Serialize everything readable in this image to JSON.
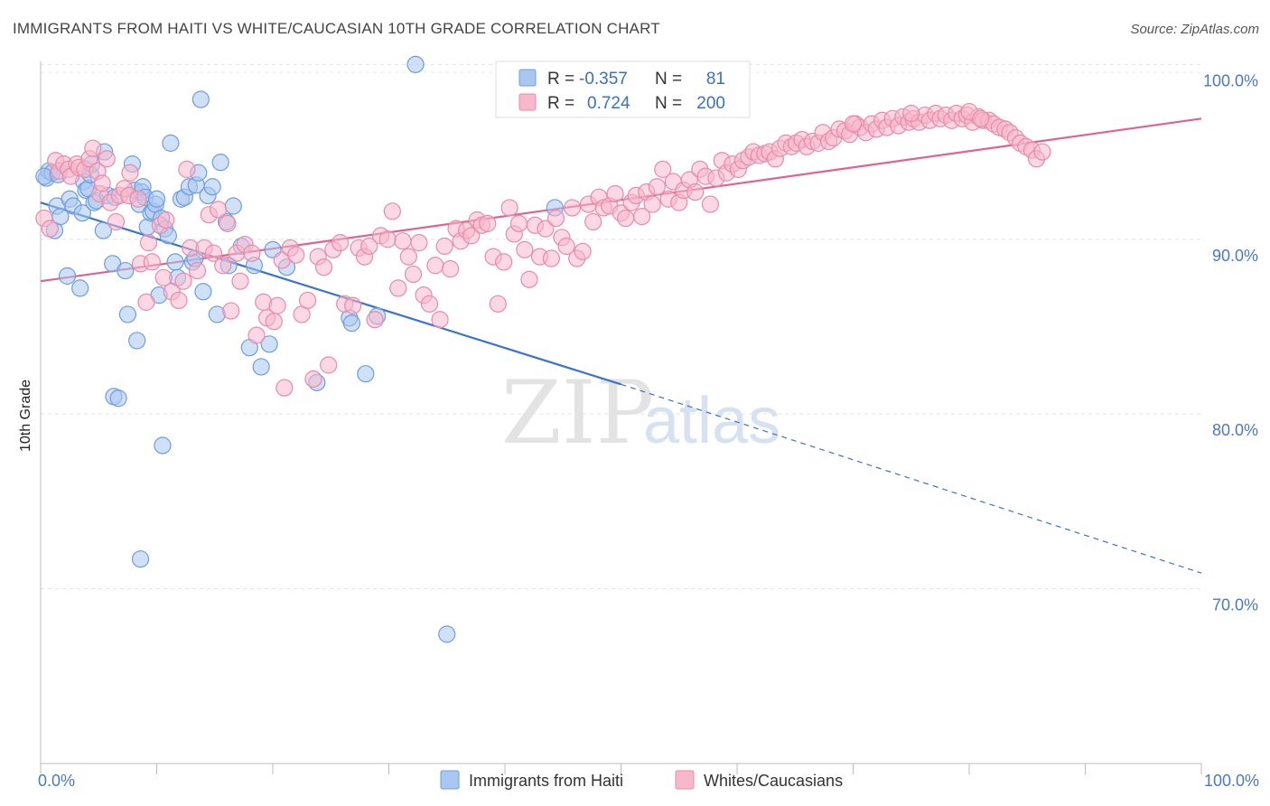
{
  "title": "IMMIGRANTS FROM HAITI VS WHITE/CAUCASIAN 10TH GRADE CORRELATION CHART",
  "source": "Source: ZipAtlas.com",
  "watermark": {
    "zip": "ZIP",
    "atlas": "atlas"
  },
  "legend": {
    "rows": [
      {
        "r_label": "R =",
        "r_value": "-0.357",
        "n_label": "N =",
        "n_value": "81",
        "color": "#a9c7f0",
        "stroke": "#6d9de0"
      },
      {
        "r_label": "R =",
        "r_value": "0.724",
        "n_label": "N =",
        "n_value": "200",
        "color": "#f7b8cc",
        "stroke": "#e88aa8"
      }
    ]
  },
  "bottom_legend": [
    {
      "label": "Immigrants from Haiti",
      "color": "#a9c7f0",
      "stroke": "#6d9de0"
    },
    {
      "label": "Whites/Caucasians",
      "color": "#f7b8cc",
      "stroke": "#e88aa8"
    }
  ],
  "chart_data": {
    "type": "scatter",
    "title": "IMMIGRANTS FROM HAITI VS WHITE/CAUCASIAN 10TH GRADE CORRELATION CHART",
    "xlabel": "",
    "ylabel": "10th Grade",
    "xlim": [
      0,
      100
    ],
    "ylim": [
      60,
      101
    ],
    "x_tick_labels": [
      "0.0%",
      "100.0%"
    ],
    "y_ticks": [
      70,
      80,
      90,
      100
    ],
    "y_tick_labels": [
      "70.0%",
      "80.0%",
      "90.0%",
      "100.0%"
    ],
    "grid": true,
    "legend_position": "top-center",
    "series": [
      {
        "name": "Immigrants from Haiti",
        "color": "#a9c7f0",
        "stroke": "#6d9de0",
        "trend": {
          "x0": 0,
          "y0": 92.1,
          "x1": 50,
          "y1": 81.7,
          "dash_to_x": 100,
          "dash_to_y": 70.9,
          "color": "#3a72cf"
        },
        "points": [
          [
            0.5,
            93.5
          ],
          [
            0.7,
            93.9
          ],
          [
            1.0,
            93.8
          ],
          [
            1.2,
            90.5
          ],
          [
            1.4,
            91.9
          ],
          [
            1.7,
            91.3
          ],
          [
            2.3,
            87.9
          ],
          [
            2.5,
            92.3
          ],
          [
            2.8,
            91.9
          ],
          [
            3.4,
            87.2
          ],
          [
            3.6,
            91.5
          ],
          [
            3.7,
            93.3
          ],
          [
            3.9,
            92.8
          ],
          [
            4.1,
            92.9
          ],
          [
            4.3,
            93.7
          ],
          [
            4.4,
            94.3
          ],
          [
            4.6,
            92.1
          ],
          [
            4.8,
            92.2
          ],
          [
            5.4,
            90.5
          ],
          [
            5.5,
            95.0
          ],
          [
            5.8,
            92.5
          ],
          [
            6.2,
            88.6
          ],
          [
            6.4,
            92.4
          ],
          [
            6.3,
            81.0
          ],
          [
            6.7,
            80.9
          ],
          [
            7.3,
            88.2
          ],
          [
            7.5,
            85.7
          ],
          [
            7.9,
            94.3
          ],
          [
            8.1,
            92.8
          ],
          [
            8.3,
            84.2
          ],
          [
            8.5,
            92.0
          ],
          [
            8.7,
            92.7
          ],
          [
            8.8,
            93.0
          ],
          [
            8.6,
            71.7
          ],
          [
            9.0,
            92.4
          ],
          [
            9.2,
            90.7
          ],
          [
            9.5,
            91.5
          ],
          [
            9.7,
            91.6
          ],
          [
            9.9,
            92.0
          ],
          [
            10.0,
            92.3
          ],
          [
            10.2,
            86.8
          ],
          [
            10.4,
            91.2
          ],
          [
            10.7,
            90.6
          ],
          [
            10.5,
            78.2
          ],
          [
            11.0,
            90.2
          ],
          [
            11.2,
            95.5
          ],
          [
            11.6,
            88.7
          ],
          [
            11.8,
            87.8
          ],
          [
            12.1,
            92.3
          ],
          [
            12.4,
            92.4
          ],
          [
            12.8,
            93.0
          ],
          [
            13.1,
            88.7
          ],
          [
            13.4,
            93.1
          ],
          [
            13.3,
            88.9
          ],
          [
            13.6,
            93.8
          ],
          [
            13.8,
            98.0
          ],
          [
            14.0,
            87.0
          ],
          [
            14.4,
            92.5
          ],
          [
            14.8,
            93.0
          ],
          [
            15.2,
            85.7
          ],
          [
            15.5,
            94.4
          ],
          [
            16.0,
            91.0
          ],
          [
            16.2,
            88.5
          ],
          [
            16.6,
            91.9
          ],
          [
            17.3,
            89.6
          ],
          [
            18.0,
            83.8
          ],
          [
            18.4,
            88.5
          ],
          [
            19.0,
            82.7
          ],
          [
            19.7,
            84.0
          ],
          [
            20.0,
            89.4
          ],
          [
            21.2,
            88.4
          ],
          [
            23.8,
            81.8
          ],
          [
            26.6,
            85.5
          ],
          [
            26.8,
            85.2
          ],
          [
            28.0,
            82.3
          ],
          [
            29.0,
            85.6
          ],
          [
            32.3,
            100.0
          ],
          [
            35.0,
            67.4
          ],
          [
            44.3,
            91.8
          ],
          [
            0.3,
            93.6
          ],
          [
            1.5,
            93.7
          ]
        ]
      },
      {
        "name": "Whites/Caucasians",
        "color": "#f7b8cc",
        "stroke": "#e88aa8",
        "trend": {
          "x0": 0,
          "y0": 87.6,
          "x1": 100,
          "y1": 96.9,
          "color": "#e0628d"
        },
        "points": [
          [
            0.3,
            91.2
          ],
          [
            0.8,
            90.6
          ],
          [
            1.3,
            94.5
          ],
          [
            1.6,
            93.9
          ],
          [
            2.0,
            94.3
          ],
          [
            2.4,
            94.0
          ],
          [
            2.6,
            93.6
          ],
          [
            3.1,
            94.3
          ],
          [
            3.3,
            94.1
          ],
          [
            3.8,
            94.0
          ],
          [
            4.2,
            94.6
          ],
          [
            4.5,
            95.2
          ],
          [
            4.9,
            93.9
          ],
          [
            5.1,
            92.6
          ],
          [
            5.3,
            93.2
          ],
          [
            5.7,
            94.6
          ],
          [
            6.0,
            92.1
          ],
          [
            6.5,
            91.0
          ],
          [
            6.8,
            92.5
          ],
          [
            7.2,
            92.9
          ],
          [
            7.6,
            92.5
          ],
          [
            7.7,
            93.8
          ],
          [
            8.4,
            92.3
          ],
          [
            8.6,
            88.6
          ],
          [
            9.1,
            86.4
          ],
          [
            9.3,
            89.8
          ],
          [
            9.6,
            88.7
          ],
          [
            10.3,
            90.8
          ],
          [
            10.6,
            87.8
          ],
          [
            10.8,
            91.1
          ],
          [
            11.3,
            87.0
          ],
          [
            11.9,
            86.5
          ],
          [
            12.3,
            87.6
          ],
          [
            12.6,
            94.0
          ],
          [
            12.9,
            89.5
          ],
          [
            13.5,
            88.2
          ],
          [
            14.1,
            89.5
          ],
          [
            14.5,
            91.4
          ],
          [
            14.9,
            89.2
          ],
          [
            15.3,
            91.7
          ],
          [
            15.7,
            88.5
          ],
          [
            16.1,
            90.9
          ],
          [
            16.4,
            85.9
          ],
          [
            16.9,
            89.2
          ],
          [
            17.2,
            87.6
          ],
          [
            17.6,
            89.7
          ],
          [
            18.2,
            89.2
          ],
          [
            18.6,
            84.5
          ],
          [
            19.2,
            86.4
          ],
          [
            19.5,
            85.5
          ],
          [
            20.1,
            85.3
          ],
          [
            20.4,
            86.2
          ],
          [
            20.8,
            88.8
          ],
          [
            21.0,
            81.5
          ],
          [
            21.5,
            89.5
          ],
          [
            22.0,
            89.1
          ],
          [
            22.5,
            85.7
          ],
          [
            23.0,
            86.5
          ],
          [
            23.5,
            82.0
          ],
          [
            23.9,
            89.0
          ],
          [
            24.4,
            88.4
          ],
          [
            24.8,
            82.8
          ],
          [
            25.2,
            89.4
          ],
          [
            25.8,
            89.8
          ],
          [
            26.2,
            86.3
          ],
          [
            26.9,
            86.2
          ],
          [
            27.4,
            89.5
          ],
          [
            27.9,
            89.0
          ],
          [
            28.3,
            89.6
          ],
          [
            28.8,
            85.4
          ],
          [
            29.3,
            90.2
          ],
          [
            29.9,
            90.0
          ],
          [
            30.3,
            91.6
          ],
          [
            30.8,
            87.2
          ],
          [
            31.2,
            89.9
          ],
          [
            31.7,
            89.0
          ],
          [
            32.1,
            88.0
          ],
          [
            32.6,
            89.8
          ],
          [
            33.0,
            86.8
          ],
          [
            33.5,
            86.3
          ],
          [
            34.0,
            88.5
          ],
          [
            34.4,
            85.4
          ],
          [
            34.8,
            89.6
          ],
          [
            35.3,
            88.3
          ],
          [
            35.8,
            90.6
          ],
          [
            36.2,
            89.9
          ],
          [
            36.7,
            90.5
          ],
          [
            37.1,
            90.2
          ],
          [
            37.6,
            91.1
          ],
          [
            38.0,
            90.8
          ],
          [
            38.5,
            90.9
          ],
          [
            39.0,
            89.0
          ],
          [
            39.4,
            86.3
          ],
          [
            39.9,
            88.7
          ],
          [
            40.4,
            91.8
          ],
          [
            40.8,
            90.3
          ],
          [
            41.2,
            90.9
          ],
          [
            41.7,
            89.4
          ],
          [
            42.1,
            87.7
          ],
          [
            42.6,
            90.8
          ],
          [
            43.0,
            89.0
          ],
          [
            43.5,
            90.6
          ],
          [
            44.0,
            88.9
          ],
          [
            44.4,
            91.2
          ],
          [
            44.9,
            90.1
          ],
          [
            45.3,
            89.6
          ],
          [
            45.8,
            91.8
          ],
          [
            46.2,
            88.9
          ],
          [
            46.7,
            89.3
          ],
          [
            47.2,
            92.0
          ],
          [
            47.6,
            91.0
          ],
          [
            48.1,
            92.4
          ],
          [
            48.5,
            91.8
          ],
          [
            49.0,
            91.9
          ],
          [
            49.5,
            92.6
          ],
          [
            50.0,
            91.5
          ],
          [
            50.4,
            91.2
          ],
          [
            50.9,
            92.1
          ],
          [
            51.3,
            92.5
          ],
          [
            51.8,
            91.3
          ],
          [
            52.2,
            92.7
          ],
          [
            52.7,
            92.0
          ],
          [
            53.1,
            93.0
          ],
          [
            53.6,
            94.0
          ],
          [
            54.1,
            92.3
          ],
          [
            54.5,
            93.3
          ],
          [
            55.0,
            92.1
          ],
          [
            55.4,
            92.8
          ],
          [
            55.9,
            93.4
          ],
          [
            56.4,
            92.7
          ],
          [
            56.8,
            94.0
          ],
          [
            57.3,
            93.6
          ],
          [
            57.7,
            92.0
          ],
          [
            58.2,
            93.5
          ],
          [
            58.7,
            94.5
          ],
          [
            59.1,
            93.8
          ],
          [
            59.6,
            94.3
          ],
          [
            60.1,
            94.0
          ],
          [
            60.5,
            94.5
          ],
          [
            61.0,
            94.7
          ],
          [
            61.4,
            95.0
          ],
          [
            61.9,
            94.8
          ],
          [
            62.4,
            94.9
          ],
          [
            62.8,
            95.0
          ],
          [
            63.3,
            94.6
          ],
          [
            63.7,
            95.2
          ],
          [
            64.2,
            95.5
          ],
          [
            64.7,
            95.3
          ],
          [
            65.1,
            95.5
          ],
          [
            65.6,
            95.7
          ],
          [
            66.0,
            95.3
          ],
          [
            66.5,
            95.6
          ],
          [
            67.0,
            95.5
          ],
          [
            67.4,
            96.1
          ],
          [
            67.9,
            95.6
          ],
          [
            68.3,
            95.8
          ],
          [
            68.8,
            96.3
          ],
          [
            69.3,
            96.2
          ],
          [
            69.7,
            96.0
          ],
          [
            70.2,
            96.6
          ],
          [
            70.6,
            96.4
          ],
          [
            71.1,
            96.1
          ],
          [
            71.6,
            96.6
          ],
          [
            72.0,
            96.3
          ],
          [
            72.5,
            96.8
          ],
          [
            72.9,
            96.4
          ],
          [
            73.4,
            96.9
          ],
          [
            73.9,
            96.5
          ],
          [
            74.3,
            97.0
          ],
          [
            74.8,
            96.7
          ],
          [
            75.2,
            96.9
          ],
          [
            75.7,
            96.7
          ],
          [
            76.2,
            97.1
          ],
          [
            76.6,
            96.8
          ],
          [
            77.1,
            97.2
          ],
          [
            77.5,
            96.9
          ],
          [
            78.0,
            97.1
          ],
          [
            78.5,
            96.8
          ],
          [
            78.9,
            97.2
          ],
          [
            79.4,
            96.9
          ],
          [
            79.8,
            97.1
          ],
          [
            80.3,
            96.7
          ],
          [
            80.8,
            97.0
          ],
          [
            81.2,
            96.8
          ],
          [
            81.7,
            96.8
          ],
          [
            82.1,
            96.6
          ],
          [
            82.6,
            96.4
          ],
          [
            83.1,
            96.3
          ],
          [
            83.5,
            96.1
          ],
          [
            84.0,
            95.8
          ],
          [
            84.4,
            95.5
          ],
          [
            84.9,
            95.3
          ],
          [
            85.4,
            95.1
          ],
          [
            85.8,
            94.6
          ],
          [
            86.3,
            95.0
          ],
          [
            70.0,
            96.6
          ],
          [
            75.0,
            97.2
          ],
          [
            80.0,
            97.3
          ],
          [
            81.0,
            96.9
          ]
        ]
      }
    ]
  }
}
